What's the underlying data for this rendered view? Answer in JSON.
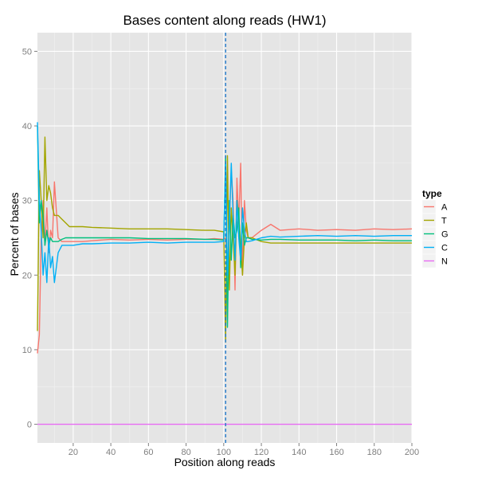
{
  "chart_data": {
    "type": "line",
    "title": "Bases content along reads (HW1)",
    "xlabel": "Position along reads",
    "ylabel": "Percent of bases",
    "xlim": [
      1,
      200
    ],
    "ylim": [
      -2.5,
      52.5
    ],
    "xticks": [
      20,
      40,
      60,
      80,
      100,
      120,
      140,
      160,
      180,
      200
    ],
    "yticks": [
      0,
      10,
      20,
      30,
      40,
      50
    ],
    "vline": {
      "x": 101,
      "color": "#1f78c8",
      "style": "dashed"
    },
    "grid": true,
    "legend": {
      "title": "type",
      "placement": "right"
    },
    "x": [
      1,
      2,
      3,
      4,
      5,
      6,
      7,
      8,
      9,
      10,
      12,
      14,
      16,
      18,
      20,
      25,
      30,
      40,
      50,
      60,
      70,
      80,
      90,
      95,
      100,
      101,
      102,
      103,
      104,
      105,
      106,
      107,
      108,
      109,
      110,
      111,
      112,
      113,
      115,
      120,
      125,
      130,
      140,
      150,
      160,
      170,
      180,
      190,
      200
    ],
    "series": [
      {
        "name": "A",
        "color": "#F8766D",
        "values": [
          9.5,
          12,
          25,
          30,
          24,
          29,
          23,
          26,
          25,
          32.5,
          25,
          24.5,
          24.5,
          24.5,
          24.5,
          24.5,
          24.6,
          24.8,
          24.7,
          24.8,
          24.7,
          24.8,
          24.8,
          24.9,
          24.8,
          25,
          21,
          27,
          34,
          30,
          18,
          33,
          27,
          35,
          20,
          30,
          26,
          25,
          25,
          26,
          26.8,
          26,
          26.2,
          26,
          26.1,
          26,
          26.2,
          26.1,
          26.2
        ]
      },
      {
        "name": "T",
        "color": "#A3A500",
        "values": [
          12.5,
          34,
          30,
          25,
          38.5,
          30,
          32,
          31,
          29,
          28,
          28,
          27.5,
          27,
          26.5,
          26.5,
          26.5,
          26.4,
          26.3,
          26.2,
          26.2,
          26.2,
          26.1,
          26,
          26,
          25.8,
          11,
          36,
          18,
          29,
          25,
          20,
          30,
          28,
          24,
          20,
          25,
          27,
          25,
          25,
          24.5,
          24.3,
          24.3,
          24.3,
          24.3,
          24.3,
          24.3,
          24.3,
          24.3,
          24.3
        ]
      },
      {
        "name": "G",
        "color": "#00BF7D",
        "values": [
          40,
          27,
          30,
          28,
          24,
          26,
          24,
          25,
          24.5,
          24.5,
          24.5,
          24.8,
          25,
          25,
          25,
          25,
          25,
          25,
          25,
          24.9,
          24.9,
          24.9,
          24.8,
          24.8,
          24.7,
          36,
          13,
          30,
          22,
          28,
          25,
          26,
          29,
          21,
          27,
          24,
          25,
          25,
          24.8,
          24.7,
          24.8,
          24.8,
          24.7,
          24.7,
          24.7,
          24.6,
          24.7,
          24.6,
          24.6
        ]
      },
      {
        "name": "C",
        "color": "#00B0F6",
        "values": [
          40.5,
          30,
          26,
          20,
          23,
          19,
          25,
          21,
          22.5,
          19,
          23,
          24,
          24,
          24,
          24,
          24.2,
          24.2,
          24.3,
          24.3,
          24.4,
          24.3,
          24.4,
          24.4,
          24.4,
          24.5,
          35,
          20,
          27,
          35,
          28,
          22,
          30,
          25,
          22,
          29,
          26,
          24.5,
          24.5,
          24.6,
          25,
          25.2,
          25.1,
          25.2,
          25.3,
          25.2,
          25.3,
          25.2,
          25.3,
          25.3
        ]
      },
      {
        "name": "N",
        "color": "#E76BF3",
        "values": [
          0,
          0,
          0,
          0,
          0,
          0,
          0,
          0,
          0,
          0,
          0,
          0,
          0,
          0,
          0,
          0,
          0,
          0,
          0,
          0,
          0,
          0,
          0,
          0,
          0,
          0,
          0,
          0,
          0,
          0,
          0,
          0,
          0,
          0,
          0,
          0,
          0,
          0,
          0,
          0,
          0,
          0,
          0,
          0,
          0,
          0,
          0,
          0,
          0
        ]
      }
    ]
  }
}
